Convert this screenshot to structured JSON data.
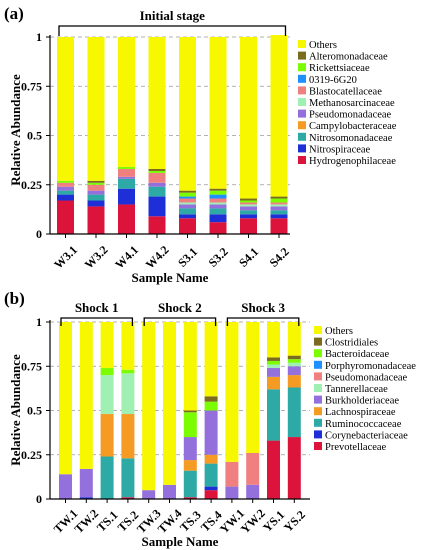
{
  "chart_data": [
    {
      "type": "bar",
      "stacked": true,
      "panel_label": "(a)",
      "bracket_labels": [
        "Initial stage"
      ],
      "xlabel": "Sample Name",
      "ylabel": "Relative Abundance",
      "ylim": [
        0,
        1
      ],
      "yticks": [
        "0",
        "0.25",
        "0.5",
        "0.75",
        "1"
      ],
      "grid": "dashed horizontal",
      "legend_position": "right",
      "categories": [
        "W3.1",
        "W3.2",
        "W4.1",
        "W4.2",
        "S3.1",
        "S3.2",
        "S4.1",
        "S4.2"
      ],
      "series": [
        {
          "name": "Hydrogenophilaceae",
          "color": "#dc143c",
          "values": [
            0.17,
            0.14,
            0.15,
            0.09,
            0.08,
            0.06,
            0.08,
            0.08
          ]
        },
        {
          "name": "Nitrospiraceae",
          "color": "#1f2fd8",
          "values": [
            0.03,
            0.03,
            0.08,
            0.1,
            0.02,
            0.04,
            0.02,
            0.02
          ]
        },
        {
          "name": "Nitrosomonadaceae",
          "color": "#2eaaa6",
          "values": [
            0.02,
            0.03,
            0.05,
            0.05,
            0.03,
            0.03,
            0.02,
            0.02
          ]
        },
        {
          "name": "Campylobacteraceae",
          "color": "#f59a23",
          "values": [
            0.0,
            0.0,
            0.0,
            0.0,
            0.0,
            0.0,
            0.0,
            0.0
          ]
        },
        {
          "name": "Pseudomonadaceae",
          "color": "#9370db",
          "values": [
            0.02,
            0.02,
            0.01,
            0.02,
            0.02,
            0.02,
            0.02,
            0.02
          ]
        },
        {
          "name": "Methanosarcinaceae",
          "color": "#a0f0b4",
          "values": [
            0.0,
            0.0,
            0.0,
            0.0,
            0.01,
            0.01,
            0.01,
            0.01
          ]
        },
        {
          "name": "Blastocatellaceae",
          "color": "#f08080",
          "values": [
            0.02,
            0.03,
            0.04,
            0.05,
            0.02,
            0.02,
            0.01,
            0.01
          ]
        },
        {
          "name": "0319-6G20",
          "color": "#1e90ff",
          "values": [
            0.0,
            0.0,
            0.0,
            0.0,
            0.01,
            0.02,
            0.0,
            0.0
          ]
        },
        {
          "name": "Rickettsiaceae",
          "color": "#7cfc00",
          "values": [
            0.01,
            0.01,
            0.01,
            0.01,
            0.02,
            0.02,
            0.01,
            0.02
          ]
        },
        {
          "name": "Alteromonadaceae",
          "color": "#7b6b1f",
          "values": [
            0.0,
            0.01,
            0.0,
            0.01,
            0.01,
            0.01,
            0.01,
            0.01
          ]
        },
        {
          "name": "Others",
          "color": "#f7f700",
          "values": [
            0.73,
            0.73,
            0.66,
            0.67,
            0.78,
            0.77,
            0.82,
            0.82
          ]
        }
      ]
    },
    {
      "type": "bar",
      "stacked": true,
      "panel_label": "(b)",
      "bracket_labels": [
        "Shock 1",
        "Shock 2",
        "Shock 3"
      ],
      "xlabel": "Sample Name",
      "ylabel": "Relative Abundance",
      "ylim": [
        0,
        1
      ],
      "yticks": [
        "0",
        "0.25",
        "0.5",
        "0.75",
        "1"
      ],
      "grid": "dashed horizontal",
      "legend_position": "right",
      "categories": [
        "TW.1",
        "TW.2",
        "TS.1",
        "TS.2",
        "TW.3",
        "TW.4",
        "TS.3",
        "TS.4",
        "YW.1",
        "YW.2",
        "YS.1",
        "YS.2"
      ],
      "series": [
        {
          "name": "Prevotellaceae",
          "color": "#dc143c",
          "values": [
            0.0,
            0.0,
            0.0,
            0.01,
            0.0,
            0.0,
            0.01,
            0.05,
            0.0,
            0.0,
            0.33,
            0.35
          ]
        },
        {
          "name": "Corynebacteriaceae",
          "color": "#1f2fd8",
          "values": [
            0.0,
            0.01,
            0.0,
            0.0,
            0.0,
            0.0,
            0.0,
            0.02,
            0.0,
            0.0,
            0.0,
            0.0
          ]
        },
        {
          "name": "Ruminococcaceae",
          "color": "#2eaaa6",
          "values": [
            0.0,
            0.0,
            0.24,
            0.22,
            0.0,
            0.0,
            0.15,
            0.13,
            0.0,
            0.0,
            0.29,
            0.28
          ]
        },
        {
          "name": "Lachnospiraceae",
          "color": "#f59a23",
          "values": [
            0.0,
            0.0,
            0.24,
            0.25,
            0.0,
            0.0,
            0.06,
            0.05,
            0.0,
            0.0,
            0.07,
            0.07
          ]
        },
        {
          "name": "Burkholderiaceae",
          "color": "#9370db",
          "values": [
            0.14,
            0.16,
            0.0,
            0.0,
            0.05,
            0.08,
            0.13,
            0.25,
            0.07,
            0.08,
            0.05,
            0.05
          ]
        },
        {
          "name": "Tannerellaceae",
          "color": "#a0f0b4",
          "values": [
            0.0,
            0.0,
            0.22,
            0.23,
            0.0,
            0.0,
            0.0,
            0.0,
            0.0,
            0.0,
            0.02,
            0.02
          ]
        },
        {
          "name": "Pseudomonadaceae",
          "color": "#f08080",
          "values": [
            0.0,
            0.0,
            0.0,
            0.0,
            0.0,
            0.0,
            0.0,
            0.0,
            0.14,
            0.18,
            0.0,
            0.0
          ]
        },
        {
          "name": "Porphyromonadaceae",
          "color": "#1e90ff",
          "values": [
            0.0,
            0.0,
            0.0,
            0.0,
            0.0,
            0.0,
            0.0,
            0.0,
            0.0,
            0.0,
            0.0,
            0.0
          ]
        },
        {
          "name": "Bacteroidaceae",
          "color": "#7cfc00",
          "values": [
            0.0,
            0.0,
            0.04,
            0.02,
            0.0,
            0.0,
            0.14,
            0.05,
            0.0,
            0.0,
            0.02,
            0.02
          ]
        },
        {
          "name": "Clostridiales",
          "color": "#7b6b1f",
          "values": [
            0.0,
            0.0,
            0.0,
            0.0,
            0.0,
            0.0,
            0.01,
            0.03,
            0.0,
            0.0,
            0.02,
            0.02
          ]
        },
        {
          "name": "Others",
          "color": "#f7f700",
          "values": [
            0.86,
            0.83,
            0.26,
            0.27,
            0.95,
            0.92,
            0.5,
            0.42,
            0.79,
            0.74,
            0.2,
            0.19
          ]
        }
      ]
    }
  ]
}
